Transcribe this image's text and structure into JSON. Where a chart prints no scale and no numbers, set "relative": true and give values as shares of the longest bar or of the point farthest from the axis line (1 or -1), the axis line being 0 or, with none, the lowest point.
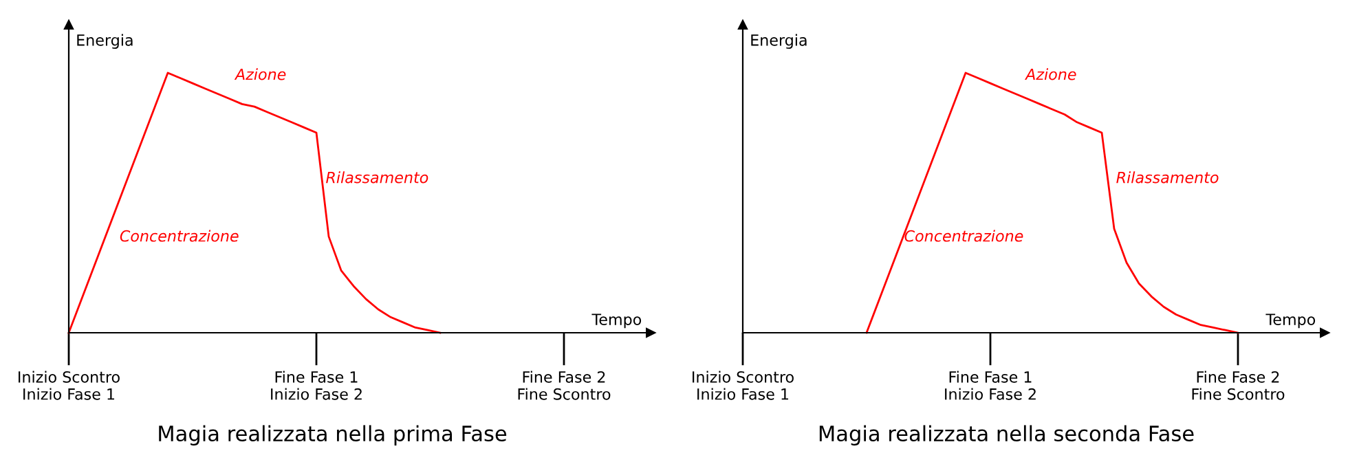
{
  "chart_data": [
    {
      "type": "line",
      "title": "Magia realizzata nella prima Fase",
      "xlabel": "Tempo",
      "ylabel": "Energia",
      "relative": true,
      "line_style": "solid",
      "categories": [
        "Inizio Scontro\nInizio Fase 1",
        null,
        null,
        null,
        null,
        null,
        null,
        null,
        null,
        null,
        null,
        null,
        null,
        null,
        null,
        null,
        null,
        null,
        null,
        null,
        "Fine Fase 1\nInizio Fase 2",
        null,
        null,
        null,
        null,
        null,
        null,
        null,
        null,
        null,
        null,
        null,
        null,
        null,
        null,
        null,
        null,
        null,
        null,
        null,
        "Fine Fase 2\nFine Scontro"
      ],
      "series": [
        {
          "color": "#ff0000",
          "values": [
            0,
            0.125,
            0.25,
            0.375,
            0.5,
            0.625,
            0.75,
            0.875,
            1,
            0.98,
            0.96,
            0.94,
            0.92,
            0.9,
            0.88,
            0.87,
            0.85,
            0.83,
            0.81,
            0.79,
            0.77,
            0.37,
            0.24,
            0.18,
            0.13,
            0.09,
            0.06,
            0.04,
            0.02,
            0.01,
            0,
            null,
            null,
            null,
            null,
            null,
            null,
            null,
            null,
            null,
            null
          ]
        }
      ],
      "annotations": [
        "Azione",
        "Rilassamento",
        "Concentrazione"
      ]
    },
    {
      "type": "line",
      "title": "Magia realizzata nella seconda Fase",
      "xlabel": "Tempo",
      "ylabel": "Energia",
      "relative": true,
      "line_style": "solid",
      "categories": [
        "Inizio Scontro\nInizio Fase 1",
        null,
        null,
        null,
        null,
        null,
        null,
        null,
        null,
        null,
        null,
        null,
        null,
        null,
        null,
        null,
        null,
        null,
        null,
        null,
        "Fine Fase 1\nInizio Fase 2",
        null,
        null,
        null,
        null,
        null,
        null,
        null,
        null,
        null,
        null,
        null,
        null,
        null,
        null,
        null,
        null,
        null,
        null,
        null,
        "Fine Fase 2\nFine Scontro"
      ],
      "series": [
        {
          "color": "#ff0000",
          "values": [
            null,
            null,
            null,
            null,
            null,
            null,
            null,
            null,
            null,
            null,
            0,
            0.125,
            0.25,
            0.375,
            0.5,
            0.625,
            0.75,
            0.875,
            1,
            0.98,
            0.96,
            0.94,
            0.92,
            0.9,
            0.88,
            0.86,
            0.84,
            0.81,
            0.79,
            0.77,
            0.4,
            0.27,
            0.19,
            0.14,
            0.1,
            0.07,
            0.05,
            0.03,
            0.02,
            0.01,
            0
          ]
        }
      ],
      "annotations": [
        "Azione",
        "Rilassamento",
        "Concentrazione"
      ]
    }
  ]
}
